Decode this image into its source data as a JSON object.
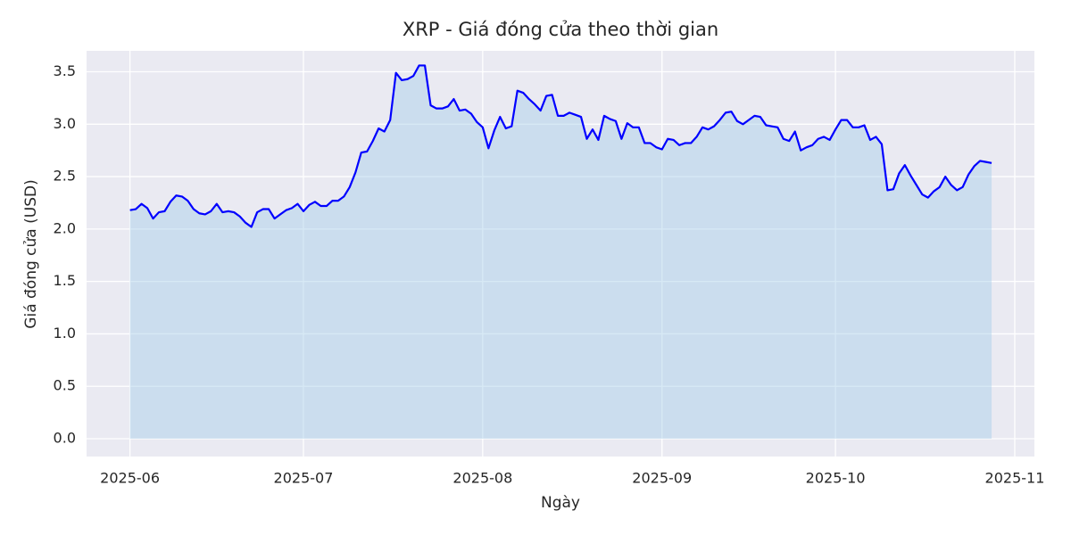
{
  "chart_data": {
    "type": "area",
    "title": "XRP - Giá đóng cửa theo thời gian",
    "xlabel": "Ngày",
    "ylabel": "Giá đóng cửa (USD)",
    "color": "blue",
    "fill_color": "#a6cee8",
    "grid": true,
    "xlim": [
      -7.5,
      156.4
    ],
    "xticks": [
      {
        "value": 0,
        "label": "2025-06"
      },
      {
        "value": 30,
        "label": "2025-07"
      },
      {
        "value": 61,
        "label": "2025-08"
      },
      {
        "value": 92,
        "label": "2025-09"
      },
      {
        "value": 122,
        "label": "2025-10"
      },
      {
        "value": 153,
        "label": "2025-11"
      }
    ],
    "ylim": [
      -0.17,
      3.7
    ],
    "yticks": [
      {
        "value": 0,
        "label": "0.0"
      },
      0.5,
      {
        "value": 1,
        "label": "1.0"
      },
      1.5,
      {
        "value": 2,
        "label": "2.0"
      },
      2.5,
      {
        "value": 3,
        "label": "3.0"
      },
      3.5
    ],
    "values": [
      2.18,
      2.19,
      2.24,
      2.2,
      2.1,
      2.16,
      2.17,
      2.26,
      2.32,
      2.31,
      2.27,
      2.19,
      2.15,
      2.14,
      2.17,
      2.24,
      2.16,
      2.17,
      2.16,
      2.12,
      2.06,
      2.02,
      2.16,
      2.19,
      2.19,
      2.1,
      2.14,
      2.18,
      2.2,
      2.24,
      2.17,
      2.23,
      2.26,
      2.22,
      2.22,
      2.27,
      2.27,
      2.31,
      2.4,
      2.54,
      2.73,
      2.74,
      2.84,
      2.96,
      2.93,
      3.04,
      3.49,
      3.42,
      3.43,
      3.46,
      3.56,
      3.56,
      3.18,
      3.15,
      3.15,
      3.17,
      3.24,
      3.13,
      3.14,
      3.1,
      3.02,
      2.97,
      2.77,
      2.94,
      3.07,
      2.96,
      2.98,
      3.32,
      3.3,
      3.24,
      3.19,
      3.13,
      3.27,
      3.28,
      3.08,
      3.08,
      3.11,
      3.09,
      3.07,
      2.86,
      2.95,
      2.85,
      3.08,
      3.05,
      3.03,
      2.86,
      3.01,
      2.97,
      2.97,
      2.82,
      2.82,
      2.78,
      2.76,
      2.86,
      2.85,
      2.8,
      2.82,
      2.82,
      2.88,
      2.97,
      2.95,
      2.98,
      3.04,
      3.11,
      3.12,
      3.03,
      3.0,
      3.04,
      3.08,
      3.07,
      2.99,
      2.98,
      2.97,
      2.86,
      2.84,
      2.93,
      2.75,
      2.78,
      2.8,
      2.86,
      2.88,
      2.85,
      2.95,
      3.04,
      3.04,
      2.97,
      2.97,
      2.99,
      2.85,
      2.88,
      2.81,
      2.37,
      2.38,
      2.53,
      2.61,
      2.51,
      2.42,
      2.33,
      2.3,
      2.36,
      2.4,
      2.5,
      2.42,
      2.37,
      2.4,
      2.52,
      2.6,
      2.65,
      2.64,
      2.63
    ]
  }
}
